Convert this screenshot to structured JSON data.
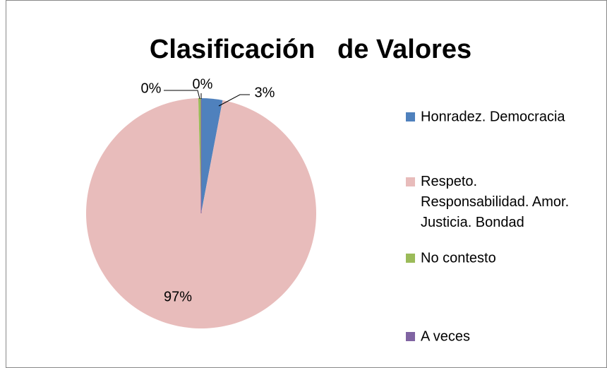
{
  "chart_data": {
    "type": "pie",
    "title": "Clasificación   de Valores",
    "categories": [
      "Honradez. Democracia",
      "Respeto. Responsabilidad. Amor. Justicia. Bondad",
      "No contesto",
      "A veces"
    ],
    "values": [
      3,
      97,
      0.4,
      0
    ],
    "value_labels": [
      "3%",
      "97%",
      "0%",
      "0%"
    ],
    "colors": [
      "#4f81bd",
      "#e8bcbb",
      "#9bbb59",
      "#8064a2"
    ],
    "legend": "right"
  }
}
